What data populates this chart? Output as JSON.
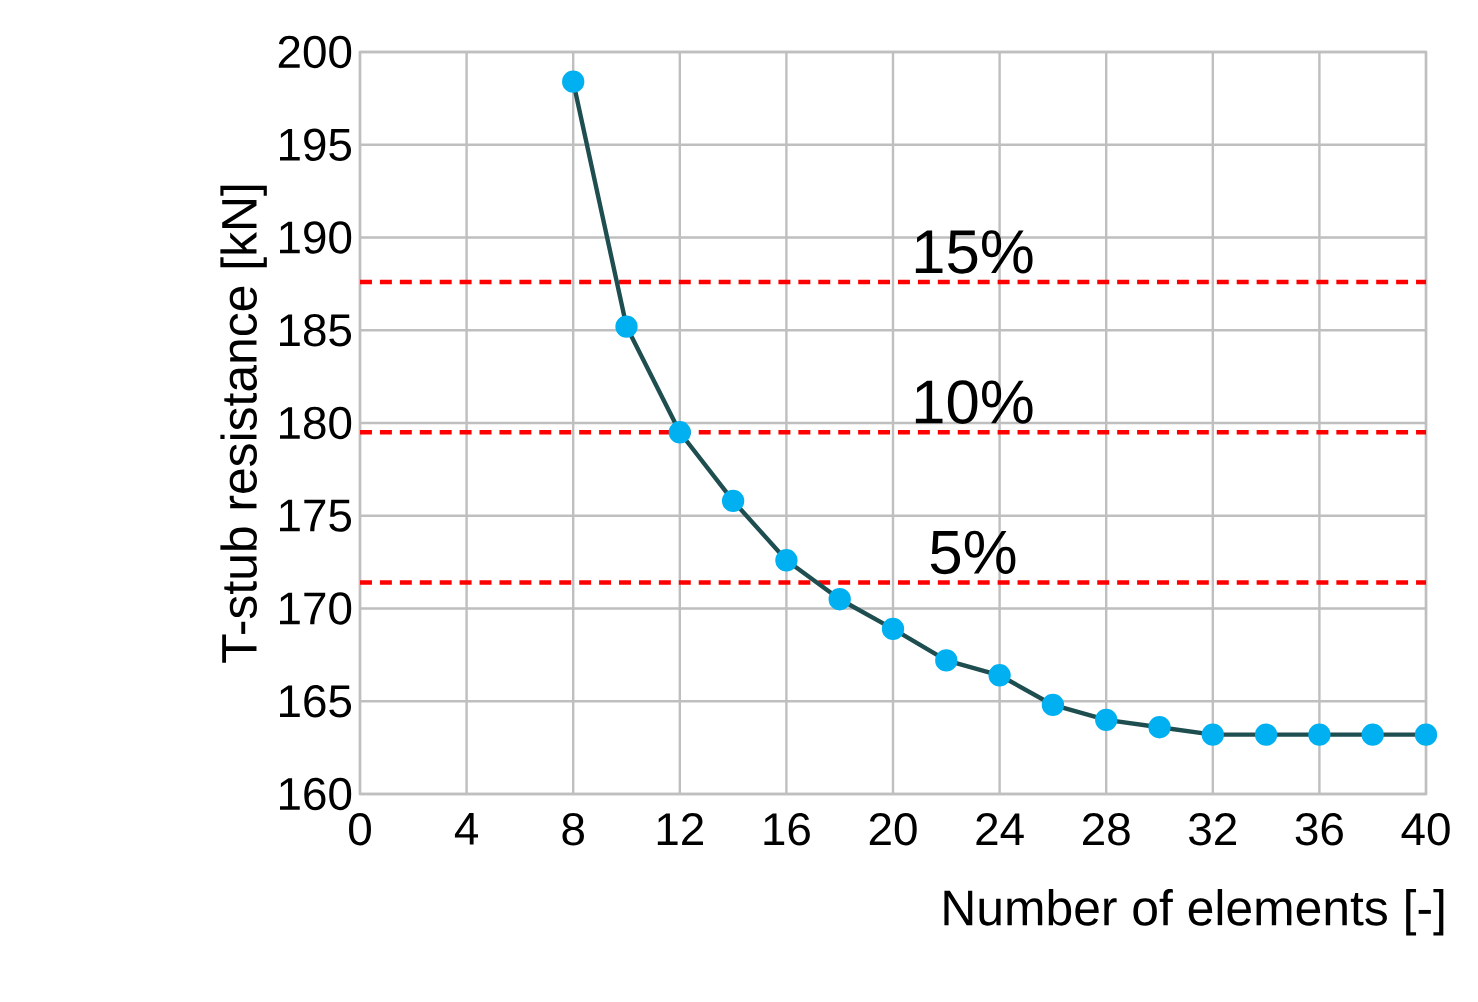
{
  "chart_data": {
    "type": "line",
    "xlabel": "Number of elements [-]",
    "ylabel": "T-stub resistance [kN]",
    "x": [
      8,
      10,
      12,
      14,
      16,
      18,
      20,
      22,
      24,
      26,
      28,
      30,
      32,
      34,
      36,
      38,
      40
    ],
    "series": [
      {
        "color": "#1f4e50",
        "values": [
          198.4,
          185.2,
          179.5,
          175.8,
          172.6,
          170.5,
          168.9,
          167.2,
          166.4,
          164.8,
          164.0,
          163.6,
          163.2,
          163.2,
          163.2,
          163.2,
          163.2
        ]
      }
    ],
    "marker": "circle",
    "line_style": "solid",
    "grid": true,
    "xlim": [
      0,
      40
    ],
    "xticks": [
      0,
      4,
      8,
      12,
      16,
      20,
      24,
      28,
      32,
      36,
      40
    ],
    "ylim": [
      160,
      200
    ],
    "yticks": [
      160,
      165,
      170,
      175,
      180,
      185,
      190,
      195,
      200
    ],
    "ref_lines": [
      {
        "axis": "y",
        "value": 187.6,
        "color": "#ff0000",
        "line_style": "dashed"
      },
      {
        "axis": "y",
        "value": 179.5,
        "color": "#ff0000",
        "line_style": "dashed"
      },
      {
        "axis": "y",
        "value": 171.4,
        "color": "#ff0000",
        "line_style": "dashed"
      }
    ],
    "annotations": [
      {
        "text": "15%",
        "y": 187.6
      },
      {
        "text": "10%",
        "y": 179.5
      },
      {
        "text": "5%",
        "y": 171.4
      }
    ]
  }
}
